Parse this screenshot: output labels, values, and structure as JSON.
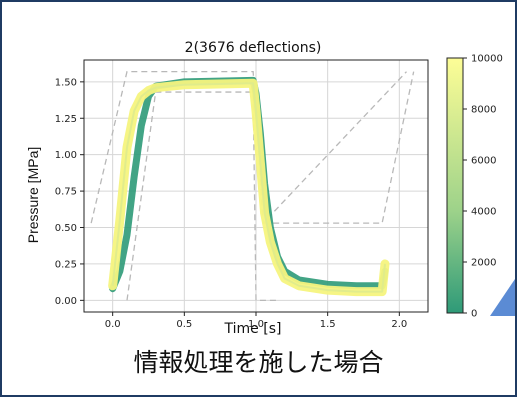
{
  "chart_data": {
    "type": "line",
    "title": "2(3676 deflections)",
    "xlabel": "Time [s]",
    "ylabel": "Pressure [MPa]",
    "xlim": [
      -0.2,
      2.2
    ],
    "ylim": [
      -0.08,
      1.65
    ],
    "xticks": [
      0.0,
      0.5,
      1.0,
      1.5,
      2.0
    ],
    "xtick_labels": [
      "0.0",
      "0.5",
      "1.0",
      "1.5",
      "2.0"
    ],
    "yticks": [
      0.0,
      0.25,
      0.5,
      0.75,
      1.0,
      1.25,
      1.5
    ],
    "ytick_labels": [
      "0.00",
      "0.25",
      "0.50",
      "0.75",
      "1.00",
      "1.25",
      "1.50"
    ],
    "grid": true,
    "colorbar": {
      "min": 0,
      "max": 10000,
      "ticks": [
        0,
        2000,
        4000,
        6000,
        8000,
        10000
      ],
      "tick_labels": [
        "0",
        "2000",
        "4000",
        "6000",
        "8000",
        "10000"
      ],
      "color_low": "#2e9a78",
      "color_high": "#fdfd96"
    },
    "series": [
      {
        "x": [
          0.0,
          0.05,
          0.1,
          0.15,
          0.2,
          0.25,
          0.3,
          0.5,
          0.98,
          1.0,
          1.03,
          1.06,
          1.1,
          1.15,
          1.2,
          1.3,
          1.5,
          1.7,
          1.88,
          1.9
        ],
        "y": [
          0.1,
          0.55,
          1.05,
          1.3,
          1.4,
          1.44,
          1.46,
          1.48,
          1.49,
          1.3,
          0.95,
          0.6,
          0.4,
          0.25,
          0.15,
          0.1,
          0.07,
          0.06,
          0.06,
          0.25
        ]
      },
      {
        "x": [
          0.0,
          0.05,
          0.1,
          0.15,
          0.2,
          0.25,
          0.3,
          0.5,
          0.98,
          1.0,
          1.03,
          1.06,
          1.1,
          1.15,
          1.2,
          1.3,
          1.5,
          1.7,
          1.88,
          1.9
        ],
        "y": [
          0.08,
          0.2,
          0.45,
          0.85,
          1.2,
          1.4,
          1.47,
          1.5,
          1.51,
          1.42,
          1.15,
          0.8,
          0.5,
          0.3,
          0.2,
          0.14,
          0.11,
          0.1,
          0.1,
          0.2
        ]
      }
    ],
    "guide_lines": [
      {
        "x": [
          -0.15,
          0.1,
          0.98,
          1.05,
          2.05
        ],
        "y": [
          0.53,
          1.57,
          1.57,
          0.53,
          1.57
        ]
      },
      {
        "x": [
          0.1,
          0.3,
          0.98,
          1.0,
          1.15
        ],
        "y": [
          0.0,
          1.43,
          1.43,
          0.0,
          0.0
        ]
      },
      {
        "x": [
          1.05,
          1.88,
          2.1
        ],
        "y": [
          0.53,
          0.53,
          1.57
        ]
      }
    ]
  },
  "caption": "情報処理を施した場合"
}
